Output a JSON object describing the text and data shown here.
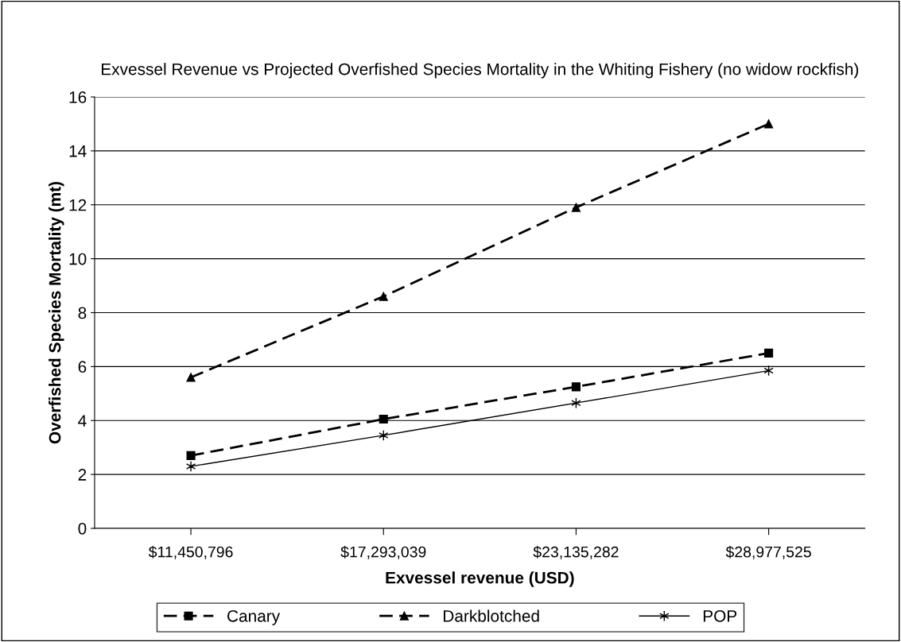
{
  "chart_data": {
    "type": "line",
    "title": "Exvessel Revenue vs Projected Overfished Species Mortality in the Whiting Fishery (no widow rockfish)",
    "xlabel": "Exvessel revenue (USD)",
    "ylabel": "Overfished Species Mortality (mt)",
    "categories": [
      "$11,450,796",
      "$17,293,039",
      "$23,135,282",
      "$28,977,525"
    ],
    "series": [
      {
        "name": "Canary",
        "color": "#000000",
        "values": [
          2.7,
          4.05,
          5.25,
          6.5
        ],
        "marker": "square",
        "line_style": "dashed"
      },
      {
        "name": "Darkblotched",
        "color": "#000000",
        "values": [
          5.6,
          8.6,
          11.9,
          15.0
        ],
        "marker": "triangle",
        "line_style": "dashed"
      },
      {
        "name": "POP",
        "color": "#000000",
        "values": [
          2.3,
          3.45,
          4.65,
          5.85
        ],
        "marker": "cross",
        "line_style": "solid"
      }
    ],
    "ylim": [
      0,
      16
    ],
    "yticks": [
      0,
      2,
      4,
      6,
      8,
      10,
      12,
      14,
      16
    ],
    "grid": "y",
    "legend": "bottom"
  }
}
